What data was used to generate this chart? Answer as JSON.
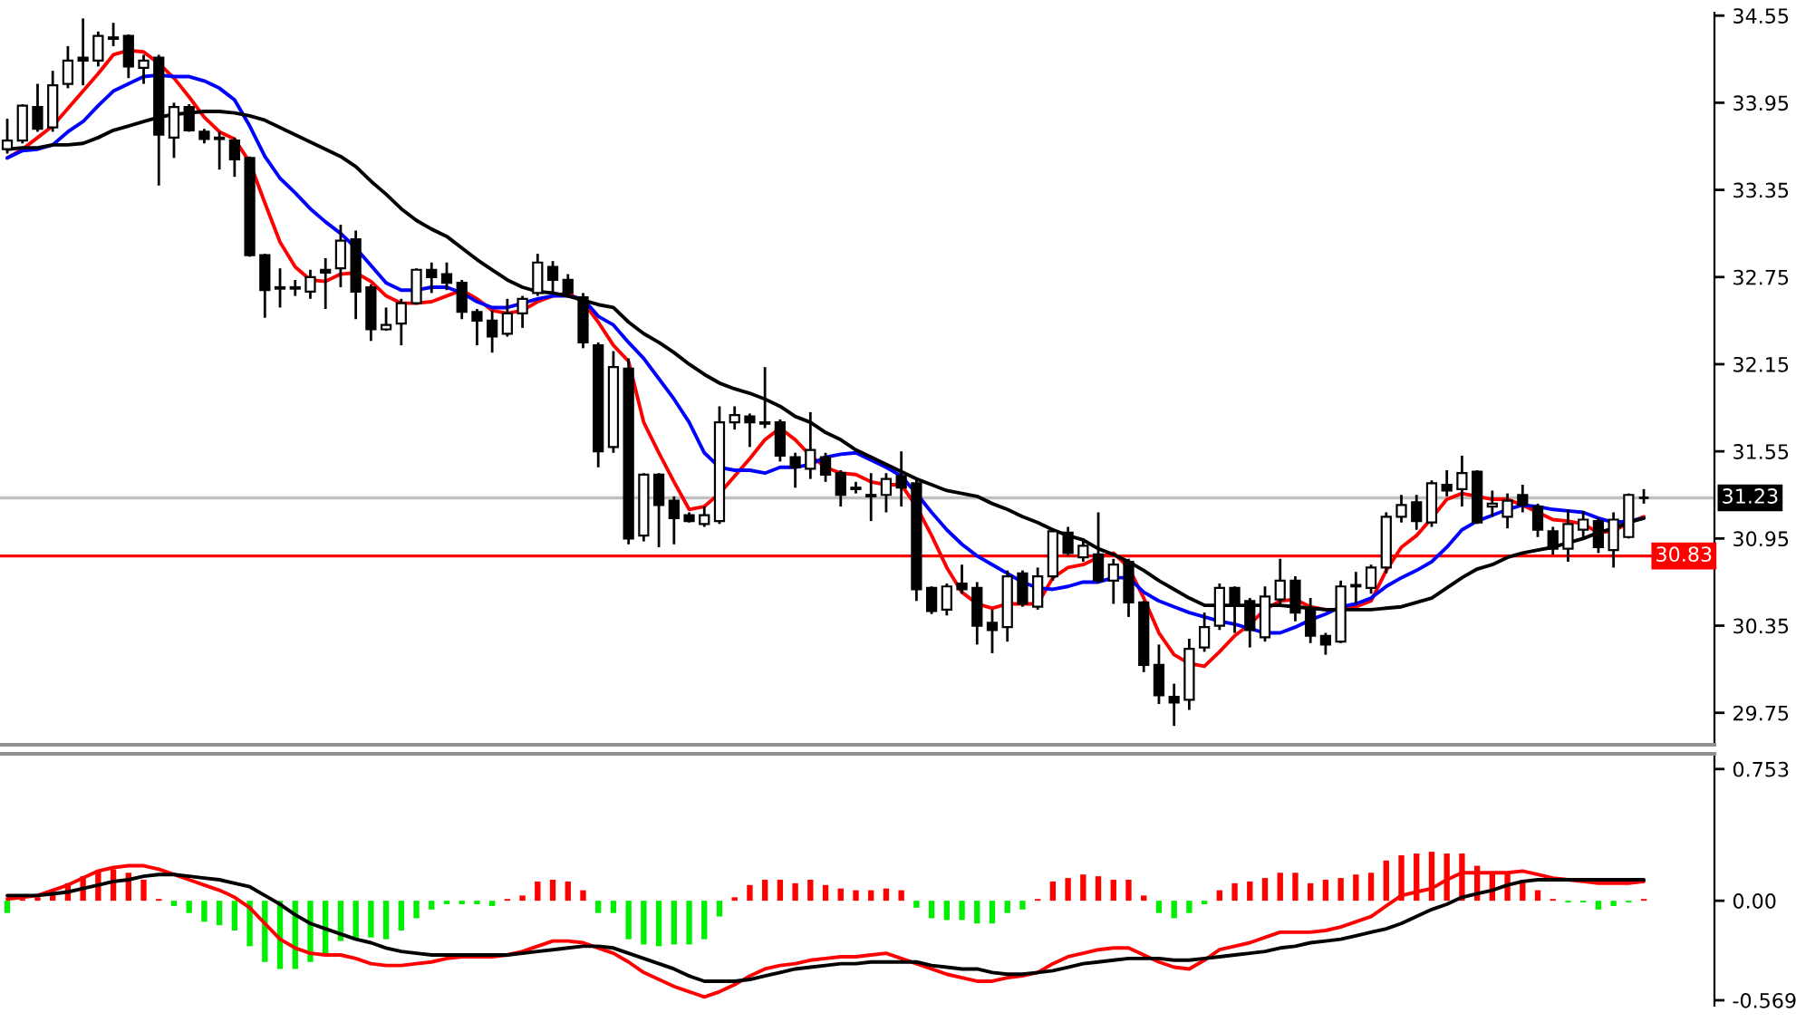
{
  "chart_data": [
    {
      "type": "candlestick",
      "categories": [
        null,
        null,
        null,
        null,
        null,
        null,
        null,
        null,
        null,
        null,
        null,
        null,
        null,
        null,
        null,
        null,
        null,
        null,
        null,
        null,
        null,
        null,
        null,
        null,
        null,
        null,
        null,
        null,
        null,
        null,
        null,
        null,
        null,
        null,
        null,
        null,
        null,
        null,
        null,
        null,
        null,
        null,
        null,
        null,
        null,
        null,
        null,
        null,
        null,
        null,
        null,
        null,
        null,
        null,
        null,
        null,
        null,
        null,
        null,
        null,
        null,
        null,
        null,
        null,
        null,
        null,
        null,
        null,
        null,
        null,
        null,
        null,
        null,
        null,
        null,
        null,
        null,
        null,
        null,
        null,
        null,
        null,
        null,
        null,
        null,
        null,
        null,
        null,
        null,
        null,
        null,
        null,
        null,
        null,
        null,
        null,
        null,
        null,
        null,
        null,
        null,
        null,
        null,
        null,
        null,
        null,
        null,
        null,
        null
      ],
      "ohlc": [
        [
          33.63,
          33.84,
          33.6,
          33.69
        ],
        [
          33.69,
          33.94,
          33.67,
          33.93
        ],
        [
          33.92,
          34.08,
          33.75,
          33.77
        ],
        [
          33.78,
          34.17,
          33.75,
          34.07
        ],
        [
          34.08,
          34.34,
          34.05,
          34.24
        ],
        [
          34.26,
          34.53,
          34.07,
          34.24
        ],
        [
          34.24,
          34.44,
          34.2,
          34.41
        ],
        [
          34.39,
          34.5,
          34.34,
          34.4
        ],
        [
          34.41,
          34.42,
          34.12,
          34.2
        ],
        [
          34.19,
          34.28,
          34.08,
          34.24
        ],
        [
          34.26,
          34.28,
          33.38,
          33.73
        ],
        [
          33.71,
          33.95,
          33.57,
          33.92
        ],
        [
          33.92,
          33.94,
          33.75,
          33.76
        ],
        [
          33.75,
          33.77,
          33.67,
          33.7
        ],
        [
          33.71,
          33.75,
          33.49,
          33.7
        ],
        [
          33.69,
          33.71,
          33.44,
          33.56
        ],
        [
          33.57,
          33.58,
          32.89,
          32.9
        ],
        [
          32.9,
          32.91,
          32.47,
          32.66
        ],
        [
          32.68,
          32.81,
          32.54,
          32.67
        ],
        [
          32.67,
          32.73,
          32.62,
          32.68
        ],
        [
          32.65,
          32.8,
          32.6,
          32.75
        ],
        [
          32.8,
          32.88,
          32.53,
          32.78
        ],
        [
          32.81,
          33.11,
          32.68,
          33.0
        ],
        [
          33.01,
          33.07,
          32.46,
          32.65
        ],
        [
          32.68,
          32.7,
          32.31,
          32.39
        ],
        [
          32.39,
          32.54,
          32.38,
          32.42
        ],
        [
          32.43,
          32.6,
          32.28,
          32.57
        ],
        [
          32.57,
          32.81,
          32.56,
          32.8
        ],
        [
          32.8,
          32.85,
          32.64,
          32.75
        ],
        [
          32.77,
          32.85,
          32.66,
          32.71
        ],
        [
          32.71,
          32.73,
          32.46,
          32.51
        ],
        [
          32.51,
          32.53,
          32.28,
          32.45
        ],
        [
          32.45,
          32.52,
          32.23,
          32.34
        ],
        [
          32.36,
          32.6,
          32.34,
          32.5
        ],
        [
          32.5,
          32.62,
          32.4,
          32.6
        ],
        [
          32.64,
          32.91,
          32.62,
          32.85
        ],
        [
          32.82,
          32.86,
          32.64,
          32.73
        ],
        [
          32.73,
          32.77,
          32.61,
          32.64
        ],
        [
          32.61,
          32.64,
          32.26,
          32.3
        ],
        [
          32.28,
          32.3,
          31.44,
          31.55
        ],
        [
          31.58,
          32.24,
          31.54,
          32.13
        ],
        [
          32.12,
          32.19,
          30.91,
          30.95
        ],
        [
          30.97,
          31.4,
          30.93,
          31.39
        ],
        [
          31.39,
          31.4,
          30.89,
          31.18
        ],
        [
          31.21,
          31.24,
          30.91,
          31.09
        ],
        [
          31.11,
          31.13,
          31.06,
          31.07
        ],
        [
          31.05,
          31.17,
          31.03,
          31.11
        ],
        [
          31.07,
          31.86,
          31.05,
          31.75
        ],
        [
          31.75,
          31.86,
          31.7,
          31.8
        ],
        [
          31.79,
          31.81,
          31.58,
          31.75
        ],
        [
          31.75,
          32.13,
          31.71,
          31.74
        ],
        [
          31.75,
          31.77,
          31.48,
          31.52
        ],
        [
          31.51,
          31.54,
          31.3,
          31.44
        ],
        [
          31.43,
          31.82,
          31.36,
          31.56
        ],
        [
          31.51,
          31.54,
          31.34,
          31.39
        ],
        [
          31.4,
          31.42,
          31.17,
          31.25
        ],
        [
          31.3,
          31.34,
          31.26,
          31.29
        ],
        [
          31.25,
          31.4,
          31.07,
          31.24
        ],
        [
          31.25,
          31.4,
          31.13,
          31.36
        ],
        [
          31.38,
          31.55,
          31.17,
          31.3
        ],
        [
          31.33,
          31.36,
          30.52,
          30.6
        ],
        [
          30.61,
          30.62,
          30.43,
          30.45
        ],
        [
          30.46,
          30.64,
          30.42,
          30.62
        ],
        [
          30.64,
          30.77,
          30.57,
          30.6
        ],
        [
          30.61,
          30.65,
          30.22,
          30.35
        ],
        [
          30.37,
          30.46,
          30.16,
          30.32
        ],
        [
          30.34,
          30.73,
          30.24,
          30.69
        ],
        [
          30.71,
          30.73,
          30.48,
          30.5
        ],
        [
          30.48,
          30.75,
          30.46,
          30.69
        ],
        [
          30.69,
          31.02,
          30.66,
          31.0
        ],
        [
          30.99,
          31.03,
          30.83,
          30.85
        ],
        [
          30.82,
          30.95,
          30.79,
          30.9
        ],
        [
          30.84,
          31.13,
          30.64,
          30.66
        ],
        [
          30.66,
          30.81,
          30.5,
          30.77
        ],
        [
          30.79,
          30.81,
          30.41,
          30.51
        ],
        [
          30.51,
          30.52,
          30.03,
          30.08
        ],
        [
          30.08,
          30.22,
          29.81,
          29.87
        ],
        [
          29.86,
          29.95,
          29.66,
          29.82
        ],
        [
          29.84,
          30.26,
          29.77,
          30.19
        ],
        [
          30.2,
          30.44,
          30.17,
          30.34
        ],
        [
          30.35,
          30.64,
          30.32,
          30.61
        ],
        [
          30.61,
          30.62,
          30.3,
          30.5
        ],
        [
          30.52,
          30.54,
          30.2,
          30.32
        ],
        [
          30.27,
          30.62,
          30.24,
          30.55
        ],
        [
          30.53,
          30.81,
          30.48,
          30.66
        ],
        [
          30.66,
          30.69,
          30.38,
          30.44
        ],
        [
          30.46,
          30.54,
          30.23,
          30.28
        ],
        [
          30.28,
          30.3,
          30.15,
          30.22
        ],
        [
          30.24,
          30.66,
          30.23,
          30.62
        ],
        [
          30.62,
          30.72,
          30.5,
          30.63
        ],
        [
          30.61,
          30.77,
          30.57,
          30.75
        ],
        [
          30.75,
          31.13,
          30.71,
          31.1
        ],
        [
          31.1,
          31.25,
          31.06,
          31.18
        ],
        [
          31.2,
          31.25,
          31.01,
          31.07
        ],
        [
          31.06,
          31.35,
          31.03,
          31.33
        ],
        [
          31.32,
          31.42,
          31.24,
          31.28
        ],
        [
          31.29,
          31.52,
          31.17,
          31.4
        ],
        [
          31.41,
          31.42,
          31.05,
          31.06
        ],
        [
          31.17,
          31.28,
          31.1,
          31.19
        ],
        [
          31.1,
          31.26,
          31.02,
          31.21
        ],
        [
          31.25,
          31.32,
          31.13,
          31.18
        ],
        [
          31.17,
          31.19,
          30.96,
          31.01
        ],
        [
          31.0,
          31.03,
          30.84,
          30.88
        ],
        [
          30.88,
          31.15,
          30.79,
          31.05
        ],
        [
          31.01,
          31.14,
          30.95,
          31.08
        ],
        [
          31.07,
          31.09,
          30.85,
          30.89
        ],
        [
          30.87,
          31.13,
          30.75,
          31.08
        ],
        [
          30.96,
          31.26,
          30.95,
          31.25
        ],
        [
          31.23,
          31.29,
          31.19,
          31.23
        ]
      ],
      "series": [
        {
          "type": "line",
          "color": "#ff0000",
          "values": [
            33.57,
            33.63,
            33.71,
            33.79,
            33.91,
            34.03,
            34.15,
            34.28,
            34.31,
            34.3,
            34.22,
            34.12,
            33.99,
            33.85,
            33.75,
            33.7,
            33.54,
            33.26,
            32.99,
            32.82,
            32.73,
            32.72,
            32.77,
            32.78,
            32.72,
            32.62,
            32.57,
            32.57,
            32.58,
            32.62,
            32.66,
            32.6,
            32.52,
            32.5,
            32.52,
            32.58,
            32.62,
            32.64,
            32.58,
            32.44,
            32.28,
            32.17,
            31.75,
            31.54,
            31.34,
            31.15,
            31.17,
            31.26,
            31.38,
            31.5,
            31.63,
            31.71,
            31.63,
            31.52,
            31.44,
            31.4,
            31.39,
            31.34,
            31.32,
            31.32,
            31.17,
            30.97,
            30.75,
            30.58,
            30.5,
            30.47,
            30.5,
            30.5,
            30.5,
            30.68,
            30.75,
            30.77,
            30.82,
            30.85,
            30.75,
            30.54,
            30.3,
            30.15,
            30.09,
            30.07,
            30.17,
            30.28,
            30.36,
            30.46,
            30.52,
            30.53,
            30.48,
            30.46,
            30.46,
            30.48,
            30.52,
            30.73,
            30.89,
            30.97,
            31.09,
            31.22,
            31.26,
            31.24,
            31.22,
            31.22,
            31.18,
            31.13,
            31.08,
            31.07,
            31.05,
            30.99,
            31.0,
            31.06,
            31.1
          ]
        },
        {
          "type": "line",
          "color": "#0000ff",
          "values": [
            33.57,
            33.62,
            33.63,
            33.66,
            33.75,
            33.82,
            33.93,
            34.03,
            34.08,
            34.13,
            34.14,
            34.13,
            34.13,
            34.1,
            34.05,
            33.97,
            33.79,
            33.58,
            33.43,
            33.33,
            33.22,
            33.13,
            33.05,
            32.95,
            32.83,
            32.71,
            32.66,
            32.66,
            32.68,
            32.68,
            32.64,
            32.58,
            32.54,
            32.54,
            32.57,
            32.6,
            32.62,
            32.62,
            32.6,
            32.48,
            32.42,
            32.3,
            32.19,
            32.05,
            31.91,
            31.75,
            31.54,
            31.44,
            31.42,
            31.42,
            31.4,
            31.44,
            31.44,
            31.46,
            31.51,
            31.53,
            31.54,
            31.49,
            31.44,
            31.38,
            31.26,
            31.13,
            31.01,
            30.91,
            30.83,
            30.77,
            30.71,
            30.65,
            30.61,
            30.6,
            30.62,
            30.65,
            30.65,
            30.68,
            30.68,
            30.58,
            30.52,
            30.48,
            30.44,
            30.41,
            30.38,
            30.36,
            30.33,
            30.3,
            30.3,
            30.34,
            30.39,
            30.43,
            30.48,
            30.5,
            30.54,
            30.62,
            30.68,
            30.73,
            30.79,
            30.89,
            31.01,
            31.07,
            31.11,
            31.15,
            31.18,
            31.17,
            31.15,
            31.14,
            31.13,
            31.09,
            31.06,
            31.07,
            31.09
          ]
        },
        {
          "type": "line",
          "color": "#000000",
          "values": [
            33.63,
            33.64,
            33.64,
            33.66,
            33.66,
            33.67,
            33.71,
            33.76,
            33.79,
            33.82,
            33.85,
            33.87,
            33.88,
            33.89,
            33.89,
            33.88,
            33.86,
            33.83,
            33.78,
            33.73,
            33.68,
            33.63,
            33.58,
            33.51,
            33.41,
            33.32,
            33.22,
            33.14,
            33.08,
            33.03,
            32.95,
            32.87,
            32.8,
            32.73,
            32.68,
            32.65,
            32.64,
            32.62,
            32.59,
            32.56,
            32.54,
            32.44,
            32.36,
            32.3,
            32.23,
            32.15,
            32.08,
            32.02,
            31.98,
            31.95,
            31.91,
            31.86,
            31.79,
            31.75,
            31.68,
            31.63,
            31.56,
            31.51,
            31.46,
            31.41,
            31.36,
            31.32,
            31.28,
            31.26,
            31.24,
            31.19,
            31.15,
            31.1,
            31.06,
            31.01,
            30.97,
            30.94,
            30.88,
            30.84,
            30.79,
            30.73,
            30.66,
            30.6,
            30.54,
            30.49,
            30.49,
            30.49,
            30.49,
            30.49,
            30.49,
            30.48,
            30.47,
            30.46,
            30.46,
            30.46,
            30.46,
            30.47,
            30.48,
            30.51,
            30.54,
            30.61,
            30.68,
            30.74,
            30.77,
            30.82,
            30.85,
            30.87,
            30.89,
            30.92,
            30.95,
            30.99,
            31.02,
            31.06,
            31.09
          ]
        }
      ],
      "ylim": [
        29.53,
        34.57
      ],
      "yticks": [
        34.55,
        33.95,
        33.35,
        32.75,
        32.15,
        31.55,
        30.95,
        30.35,
        29.75
      ],
      "ref_lines": [
        {
          "axis": "y",
          "value": 31.23,
          "label": "31.23",
          "color": "#c0c0c0"
        },
        {
          "axis": "y",
          "value": 30.83,
          "label": "30.83",
          "color": "#ff0000"
        }
      ],
      "tick_labels": "y"
    },
    {
      "type": "bar",
      "categories": [
        null,
        null,
        null,
        null,
        null,
        null,
        null,
        null,
        null,
        null,
        null,
        null,
        null,
        null,
        null,
        null,
        null,
        null,
        null,
        null,
        null,
        null,
        null,
        null,
        null,
        null,
        null,
        null,
        null,
        null,
        null,
        null,
        null,
        null,
        null,
        null,
        null,
        null,
        null,
        null,
        null,
        null,
        null,
        null,
        null,
        null,
        null,
        null,
        null,
        null,
        null,
        null,
        null,
        null,
        null,
        null,
        null,
        null,
        null,
        null,
        null,
        null,
        null,
        null,
        null,
        null,
        null,
        null,
        null,
        null,
        null,
        null,
        null,
        null,
        null,
        null,
        null,
        null,
        null,
        null,
        null,
        null,
        null,
        null,
        null,
        null,
        null,
        null,
        null,
        null,
        null,
        null,
        null,
        null,
        null,
        null,
        null,
        null,
        null,
        null,
        null,
        null,
        null,
        null,
        null,
        null,
        null,
        null,
        null
      ],
      "stacked": true,
      "series": [
        {
          "color": "#ff0000",
          "values": [
            null,
            0.01,
            0.02,
            0.05,
            0.1,
            0.14,
            0.17,
            0.18,
            0.16,
            0.12,
            0.01,
            null,
            null,
            null,
            null,
            null,
            null,
            null,
            null,
            null,
            null,
            null,
            null,
            null,
            null,
            null,
            null,
            null,
            null,
            null,
            null,
            null,
            null,
            0.01,
            0.03,
            0.11,
            0.12,
            0.11,
            0.06,
            null,
            null,
            null,
            null,
            null,
            null,
            null,
            null,
            null,
            0.02,
            0.09,
            0.12,
            0.12,
            0.1,
            0.12,
            0.09,
            0.07,
            0.06,
            0.06,
            0.07,
            0.06,
            null,
            null,
            null,
            null,
            null,
            null,
            null,
            null,
            0.01,
            0.11,
            0.13,
            0.15,
            0.14,
            0.12,
            0.12,
            0.03,
            null,
            null,
            null,
            null,
            0.06,
            0.1,
            0.11,
            0.13,
            0.16,
            0.16,
            0.1,
            0.12,
            0.13,
            0.15,
            0.16,
            0.23,
            0.26,
            0.27,
            0.28,
            0.27,
            0.27,
            0.2,
            0.16,
            0.16,
            0.12,
            0.06,
            0.01,
            null,
            null,
            null,
            null,
            null,
            0.01
          ]
        },
        {
          "color": "#00ee00",
          "values": [
            -0.07,
            null,
            null,
            null,
            null,
            null,
            null,
            null,
            null,
            null,
            null,
            -0.03,
            -0.07,
            -0.12,
            -0.14,
            -0.17,
            -0.26,
            -0.35,
            -0.39,
            -0.39,
            -0.35,
            -0.3,
            -0.23,
            -0.22,
            -0.21,
            -0.22,
            -0.17,
            -0.1,
            -0.05,
            -0.02,
            -0.02,
            -0.02,
            -0.03,
            null,
            null,
            null,
            null,
            null,
            null,
            -0.07,
            -0.07,
            -0.22,
            -0.25,
            -0.26,
            -0.25,
            -0.25,
            -0.22,
            -0.09,
            null,
            null,
            null,
            null,
            null,
            null,
            null,
            null,
            null,
            null,
            null,
            null,
            -0.04,
            -0.1,
            -0.11,
            -0.11,
            -0.13,
            -0.13,
            -0.07,
            -0.05,
            null,
            null,
            null,
            null,
            null,
            null,
            null,
            null,
            -0.07,
            -0.1,
            -0.07,
            -0.02,
            null,
            null,
            null,
            null,
            null,
            null,
            null,
            null,
            null,
            null,
            null,
            null,
            null,
            null,
            null,
            null,
            null,
            null,
            null,
            null,
            null,
            null,
            null,
            -0.01,
            -0.01,
            -0.05,
            -0.03,
            -0.01,
            null
          ]
        },
        {
          "type": "line",
          "color": "#ff0000",
          "values": [
            0.01,
            0.02,
            0.03,
            0.06,
            0.09,
            0.13,
            0.17,
            0.19,
            0.2,
            0.2,
            0.18,
            0.15,
            0.12,
            0.09,
            0.06,
            0.02,
            -0.04,
            -0.13,
            -0.22,
            -0.27,
            -0.3,
            -0.31,
            -0.31,
            -0.33,
            -0.36,
            -0.37,
            -0.37,
            -0.36,
            -0.35,
            -0.33,
            -0.32,
            -0.32,
            -0.32,
            -0.31,
            -0.29,
            -0.26,
            -0.23,
            -0.23,
            -0.24,
            -0.27,
            -0.3,
            -0.35,
            -0.41,
            -0.45,
            -0.49,
            -0.52,
            -0.55,
            -0.52,
            -0.48,
            -0.43,
            -0.39,
            -0.37,
            -0.36,
            -0.34,
            -0.33,
            -0.32,
            -0.32,
            -0.31,
            -0.3,
            -0.33,
            -0.36,
            -0.39,
            -0.42,
            -0.44,
            -0.46,
            -0.46,
            -0.44,
            -0.43,
            -0.41,
            -0.36,
            -0.32,
            -0.3,
            -0.28,
            -0.27,
            -0.27,
            -0.31,
            -0.35,
            -0.38,
            -0.39,
            -0.34,
            -0.28,
            -0.26,
            -0.24,
            -0.21,
            -0.18,
            -0.18,
            -0.18,
            -0.17,
            -0.15,
            -0.12,
            -0.09,
            -0.03,
            0.03,
            0.05,
            0.07,
            0.12,
            0.16,
            0.16,
            0.16,
            0.16,
            0.17,
            0.15,
            0.13,
            0.12,
            0.11,
            0.1,
            0.1,
            0.1,
            0.11
          ]
        },
        {
          "type": "line",
          "color": "#000000",
          "values": [
            0.03,
            0.03,
            0.03,
            0.04,
            0.05,
            0.07,
            0.09,
            0.11,
            0.12,
            0.14,
            0.15,
            0.15,
            0.14,
            0.13,
            0.12,
            0.1,
            0.08,
            0.03,
            -0.02,
            -0.08,
            -0.13,
            -0.16,
            -0.19,
            -0.22,
            -0.24,
            -0.27,
            -0.29,
            -0.3,
            -0.31,
            -0.31,
            -0.31,
            -0.31,
            -0.31,
            -0.31,
            -0.3,
            -0.29,
            -0.28,
            -0.27,
            -0.26,
            -0.26,
            -0.27,
            -0.3,
            -0.33,
            -0.36,
            -0.39,
            -0.43,
            -0.46,
            -0.46,
            -0.46,
            -0.45,
            -0.43,
            -0.41,
            -0.39,
            -0.38,
            -0.37,
            -0.36,
            -0.36,
            -0.35,
            -0.35,
            -0.35,
            -0.35,
            -0.37,
            -0.38,
            -0.39,
            -0.39,
            -0.41,
            -0.42,
            -0.42,
            -0.41,
            -0.4,
            -0.38,
            -0.36,
            -0.35,
            -0.34,
            -0.33,
            -0.33,
            -0.33,
            -0.34,
            -0.34,
            -0.33,
            -0.32,
            -0.31,
            -0.3,
            -0.29,
            -0.27,
            -0.26,
            -0.24,
            -0.23,
            -0.22,
            -0.2,
            -0.18,
            -0.16,
            -0.13,
            -0.09,
            -0.05,
            -0.02,
            0.02,
            0.04,
            0.06,
            0.09,
            0.11,
            0.12,
            0.12,
            0.12,
            0.12,
            0.12,
            0.12,
            0.12,
            0.12
          ]
        }
      ],
      "ylim": [
        -0.6,
        0.84
      ],
      "yticks": [
        0.753,
        {
          "value": 0,
          "label": "0.00"
        },
        -0.569
      ],
      "tick_labels": "y"
    }
  ]
}
